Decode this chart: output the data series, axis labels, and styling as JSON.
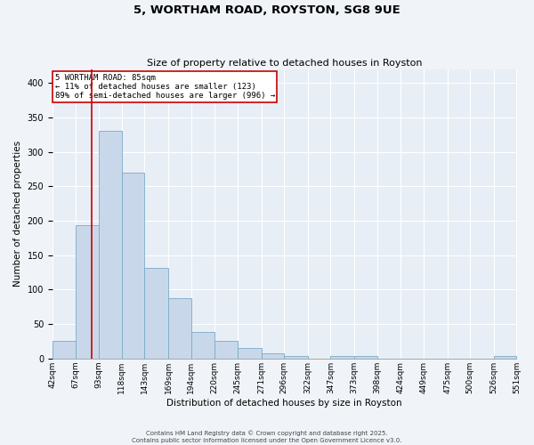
{
  "title": "5, WORTHAM ROAD, ROYSTON, SG8 9UE",
  "subtitle": "Size of property relative to detached houses in Royston",
  "xlabel": "Distribution of detached houses by size in Royston",
  "ylabel": "Number of detached properties",
  "bar_color": "#c8d8ea",
  "bar_edge_color": "#7aaac8",
  "background_color": "#e8eef5",
  "fig_background_color": "#f0f4f8",
  "grid_color": "#ffffff",
  "bin_labels": [
    "42sqm",
    "67sqm",
    "93sqm",
    "118sqm",
    "143sqm",
    "169sqm",
    "194sqm",
    "220sqm",
    "245sqm",
    "271sqm",
    "296sqm",
    "322sqm",
    "347sqm",
    "373sqm",
    "398sqm",
    "424sqm",
    "449sqm",
    "475sqm",
    "500sqm",
    "526sqm",
    "551sqm"
  ],
  "bin_edges": [
    42,
    67,
    93,
    118,
    143,
    169,
    194,
    220,
    245,
    271,
    296,
    322,
    347,
    373,
    398,
    424,
    449,
    475,
    500,
    526,
    551
  ],
  "counts": [
    25,
    193,
    330,
    270,
    132,
    87,
    39,
    25,
    15,
    7,
    4,
    0,
    4,
    3,
    0,
    0,
    0,
    0,
    0,
    3
  ],
  "property_size": 85,
  "annotation_line1": "5 WORTHAM ROAD: 85sqm",
  "annotation_line2": "← 11% of detached houses are smaller (123)",
  "annotation_line3": "89% of semi-detached houses are larger (996) →",
  "vline_color": "#cc0000",
  "annotation_box_color": "#cc0000",
  "ylim": [
    0,
    420
  ],
  "yticks": [
    0,
    50,
    100,
    150,
    200,
    250,
    300,
    350,
    400
  ],
  "footer_line1": "Contains HM Land Registry data © Crown copyright and database right 2025.",
  "footer_line2": "Contains public sector information licensed under the Open Government Licence v3.0."
}
